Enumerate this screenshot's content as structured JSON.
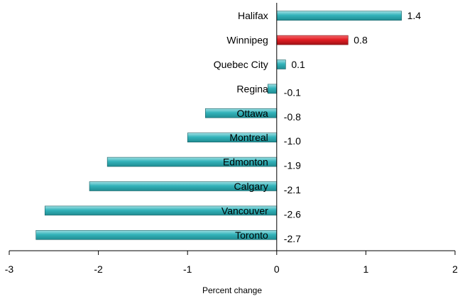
{
  "chart_data": {
    "type": "bar",
    "orientation": "horizontal",
    "categories": [
      "Halifax",
      "Winnipeg",
      "Quebec City",
      "Regina",
      "Ottawa",
      "Montreal",
      "Edmonton",
      "Calgary",
      "Vancouver",
      "Toronto"
    ],
    "values": [
      1.4,
      0.8,
      0.1,
      -0.1,
      -0.8,
      -1.0,
      -1.9,
      -2.1,
      -2.6,
      -2.7
    ],
    "value_labels": [
      "1.4",
      "0.8",
      "0.1",
      "-0.1",
      "-0.8",
      "-1.0",
      "-1.9",
      "-2.1",
      "-2.6",
      "-2.7"
    ],
    "highlight_category": "Winnipeg",
    "xlabel": "Percent change",
    "ylabel": "",
    "xlim": [
      -3,
      2
    ],
    "x_ticks": [
      -3,
      -2,
      -1,
      0,
      1,
      2
    ],
    "x_tick_labels": [
      "-3",
      "-2",
      "-1",
      "0",
      "1",
      "2"
    ],
    "grid": false,
    "colors": {
      "bar": "#33B3BA",
      "bar_highlight": "#E31E24",
      "bar_outline": "#1a5f63",
      "axis": "#000000"
    }
  }
}
